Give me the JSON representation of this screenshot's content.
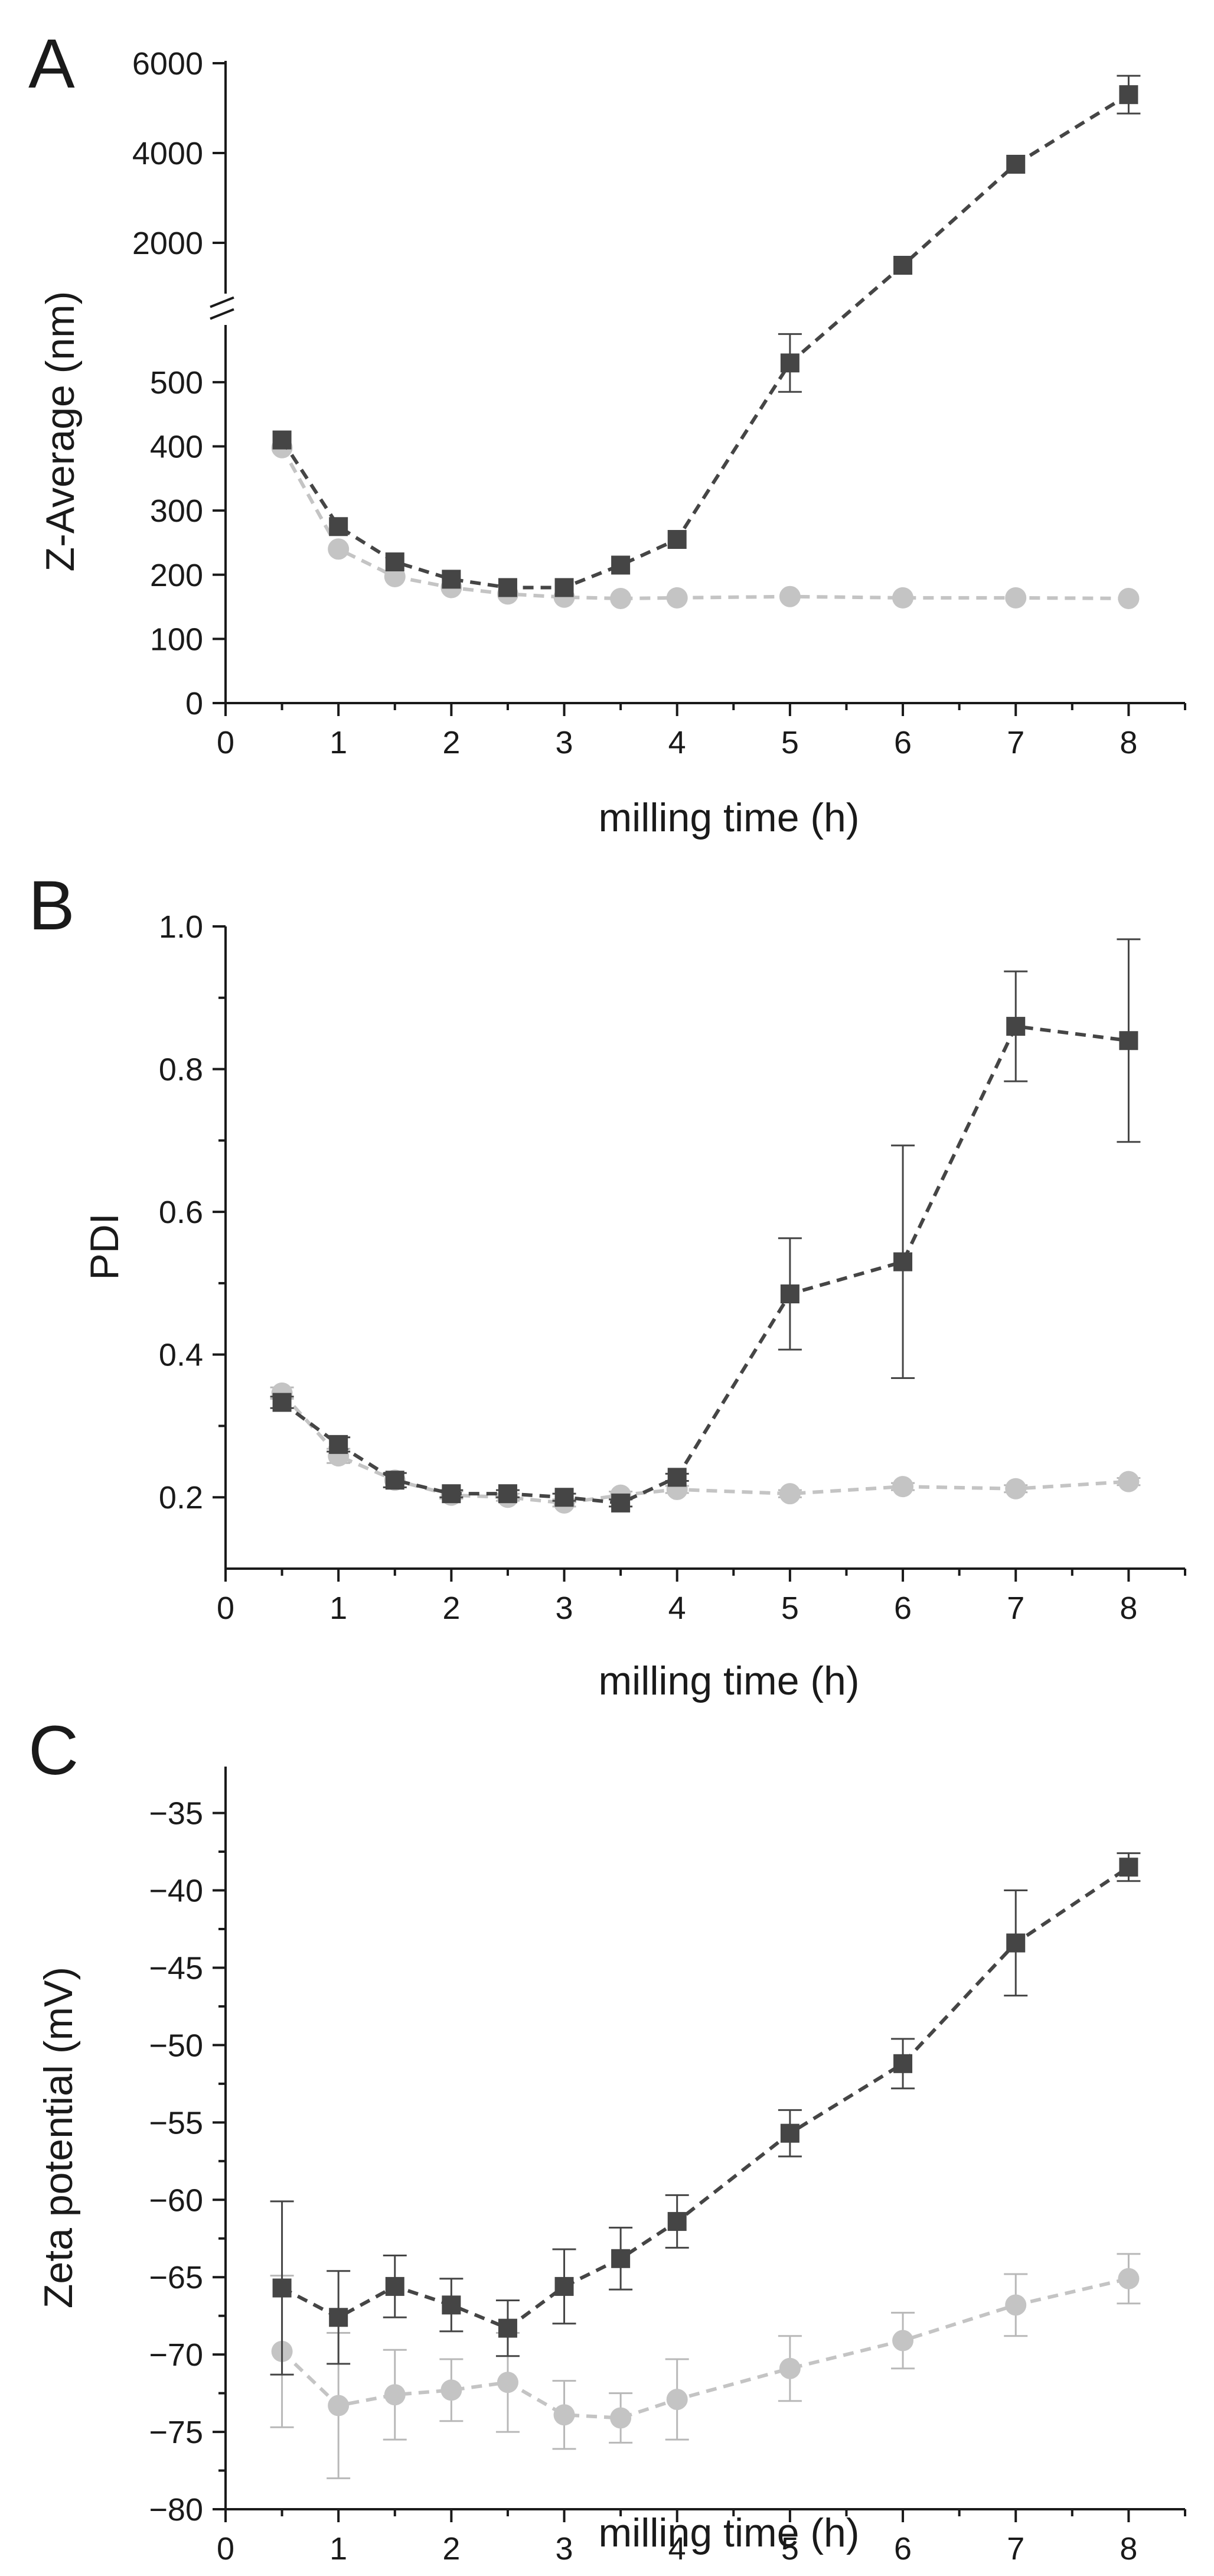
{
  "chart_data": [
    {
      "panel": "A",
      "type": "line",
      "xlabel": "milling time (h)",
      "ylabel": "Z-Average (nm)",
      "xlim": [
        0,
        8.5
      ],
      "xticks": [
        0,
        1,
        2,
        3,
        4,
        5,
        6,
        7,
        8
      ],
      "ylim_lower": [
        0,
        580
      ],
      "ylim_upper": [
        1000,
        6000
      ],
      "axis_break": [
        580,
        1000
      ],
      "yticks": [
        0,
        100,
        200,
        300,
        400,
        500,
        2000,
        4000,
        6000
      ],
      "x": [
        0.5,
        1,
        1.5,
        2,
        2.5,
        3,
        3.5,
        4,
        5,
        6,
        7,
        8
      ],
      "series": [
        {
          "name": "series-dark",
          "marker": "square",
          "color": "#454545",
          "values": [
            410,
            275,
            220,
            193,
            180,
            180,
            215,
            255,
            530,
            1500,
            3750,
            5300
          ],
          "errors": [
            0,
            0,
            0,
            0,
            0,
            0,
            0,
            0,
            45,
            0,
            0,
            420
          ]
        },
        {
          "name": "series-light",
          "marker": "circle",
          "color": "#c4c4c4",
          "values": [
            398,
            240,
            197,
            180,
            170,
            165,
            163,
            164,
            166,
            164,
            164,
            163
          ],
          "errors": [
            0,
            0,
            0,
            0,
            0,
            0,
            0,
            0,
            0,
            0,
            0,
            0
          ]
        }
      ]
    },
    {
      "panel": "B",
      "type": "line",
      "xlabel": "milling time (h)",
      "ylabel": "PDI",
      "xlim": [
        0,
        8.5
      ],
      "xticks": [
        0,
        1,
        2,
        3,
        4,
        5,
        6,
        7,
        8
      ],
      "ylim": [
        0.1,
        1.0
      ],
      "yticks": [
        0.2,
        0.4,
        0.6,
        0.8,
        1.0
      ],
      "ytick_labels": [
        "0.2",
        "0.4",
        "0.6",
        "0.8",
        "1.0"
      ],
      "x": [
        0.5,
        1,
        1.5,
        2,
        2.5,
        3,
        3.5,
        4,
        5,
        6,
        7,
        8
      ],
      "series": [
        {
          "name": "series-dark",
          "marker": "square",
          "color": "#454545",
          "values": [
            0.333,
            0.274,
            0.224,
            0.205,
            0.205,
            0.2,
            0.192,
            0.228,
            0.485,
            0.53,
            0.86,
            0.84
          ],
          "errors": [
            0.008,
            0.01,
            0.01,
            0.005,
            0.005,
            0.005,
            0.005,
            0.005,
            0.078,
            0.163,
            0.077,
            0.142
          ]
        },
        {
          "name": "series-light",
          "marker": "circle",
          "color": "#c4c4c4",
          "values": [
            0.346,
            0.258,
            0.224,
            0.203,
            0.2,
            0.192,
            0.203,
            0.211,
            0.205,
            0.215,
            0.212,
            0.222
          ],
          "errors": [
            0.008,
            0.01,
            0.01,
            0.005,
            0.005,
            0.005,
            0.005,
            0.005,
            0.005,
            0.005,
            0.005,
            0.005
          ]
        }
      ]
    },
    {
      "panel": "C",
      "type": "line",
      "xlabel": "milling time (h)",
      "ylabel": "Zeta potential (mV)",
      "xlim": [
        0,
        8.5
      ],
      "xticks": [
        0,
        1,
        2,
        3,
        4,
        5,
        6,
        7,
        8
      ],
      "ylim": [
        -80,
        -32
      ],
      "yticks": [
        -80,
        -75,
        -70,
        -65,
        -60,
        -55,
        -50,
        -45,
        -40,
        -35
      ],
      "ytick_labels": [
        "-80",
        "-75",
        "-70",
        "-65",
        "-60",
        "-55",
        "-50",
        "-45",
        "-40",
        "-35"
      ],
      "x": [
        0.5,
        1,
        1.5,
        2,
        2.5,
        3,
        3.5,
        4,
        5,
        6,
        7,
        8
      ],
      "series": [
        {
          "name": "series-dark",
          "marker": "square",
          "color": "#454545",
          "values": [
            -65.7,
            -67.6,
            -65.6,
            -66.8,
            -68.3,
            -65.6,
            -63.8,
            -61.4,
            -55.7,
            -51.2,
            -43.4,
            -38.5
          ],
          "errors": [
            5.6,
            3.0,
            2.0,
            1.7,
            1.8,
            2.4,
            2.0,
            1.7,
            1.5,
            1.6,
            3.4,
            0.9
          ]
        },
        {
          "name": "series-light",
          "marker": "circle",
          "color": "#c4c4c4",
          "values": [
            -69.8,
            -73.3,
            -72.6,
            -72.3,
            -71.8,
            -73.9,
            -74.1,
            -72.9,
            -70.9,
            -69.1,
            -66.8,
            -65.1
          ],
          "errors": [
            4.9,
            4.7,
            2.9,
            2.0,
            3.2,
            2.2,
            1.6,
            2.6,
            2.1,
            1.8,
            2.0,
            1.6
          ]
        }
      ]
    }
  ]
}
